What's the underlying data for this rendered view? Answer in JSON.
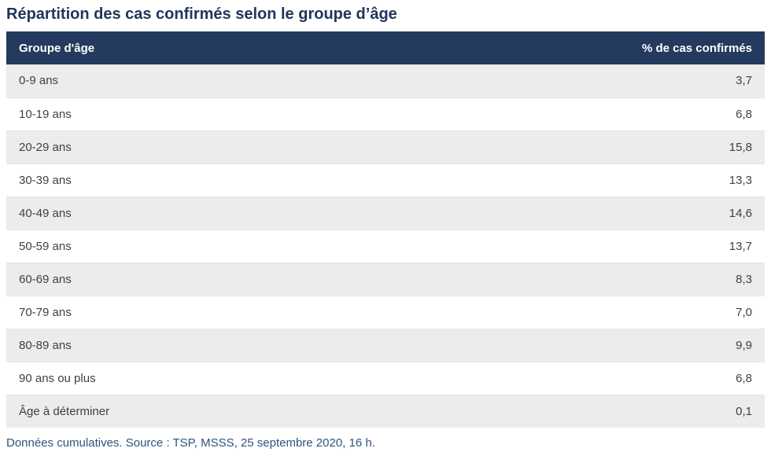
{
  "title": "Répartition des cas confirmés selon le groupe d’âge",
  "table": {
    "headers": {
      "group": "Groupe d'âge",
      "pct": "% de cas confirmés"
    },
    "rows": [
      {
        "group": "0-9 ans",
        "pct": "3,7"
      },
      {
        "group": "10-19 ans",
        "pct": "6,8"
      },
      {
        "group": "20-29 ans",
        "pct": "15,8"
      },
      {
        "group": "30-39 ans",
        "pct": "13,3"
      },
      {
        "group": "40-49 ans",
        "pct": "14,6"
      },
      {
        "group": "50-59 ans",
        "pct": "13,7"
      },
      {
        "group": "60-69 ans",
        "pct": "8,3"
      },
      {
        "group": "70-79 ans",
        "pct": "7,0"
      },
      {
        "group": "80-89 ans",
        "pct": "9,9"
      },
      {
        "group": "90 ans ou plus",
        "pct": "6,8"
      },
      {
        "group": "Âge à déterminer",
        "pct": "0,1"
      }
    ]
  },
  "footer": {
    "note": "Données cumulatives. Source : TSP, MSSS, 25 septembre 2020, 16 h."
  },
  "colors": {
    "header_bg": "#243a5e",
    "row_alt_bg": "#ececed",
    "row_bg": "#ffffff",
    "title_text": "#21365b",
    "footer_text": "#2e5380",
    "cell_text": "#3d4145",
    "header_text": "#ffffff"
  },
  "chart_data": {
    "type": "table",
    "title": "Répartition des cas confirmés selon le groupe d’âge",
    "columns": [
      "Groupe d'âge",
      "% de cas confirmés"
    ],
    "categories": [
      "0-9 ans",
      "10-19 ans",
      "20-29 ans",
      "30-39 ans",
      "40-49 ans",
      "50-59 ans",
      "60-69 ans",
      "70-79 ans",
      "80-89 ans",
      "90 ans ou plus",
      "Âge à déterminer"
    ],
    "values": [
      3.7,
      6.8,
      15.8,
      13.3,
      14.6,
      13.7,
      8.3,
      7.0,
      9.9,
      6.8,
      0.1
    ],
    "value_format": "percent-comma-decimal",
    "note": "Données cumulatives. Source : TSP, MSSS, 25 septembre 2020, 16 h."
  }
}
